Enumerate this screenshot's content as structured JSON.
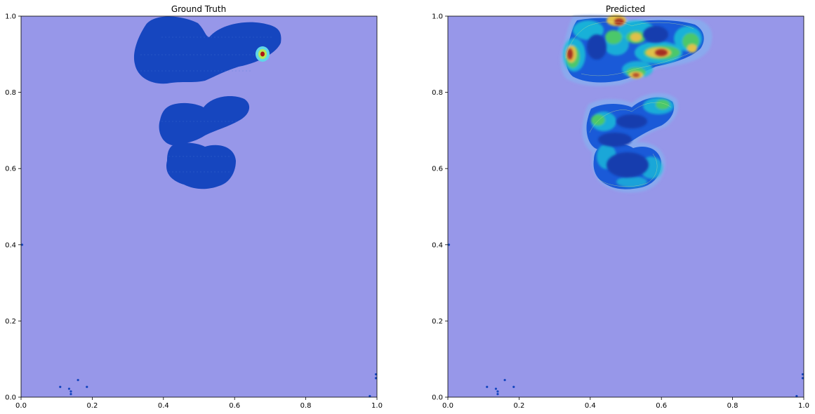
{
  "chart_data": [
    {
      "type": "heatmap",
      "title": "Ground Truth",
      "xlabel": "",
      "ylabel": "",
      "xlim": [
        0,
        1
      ],
      "ylim": [
        0,
        1
      ],
      "xticks": [
        "0.0",
        "0.2",
        "0.4",
        "0.6",
        "0.8",
        "1.0"
      ],
      "yticks": [
        "0.0",
        "0.2",
        "0.4",
        "0.6",
        "0.8",
        "1.0"
      ],
      "colormap": "jet",
      "overlay_alpha": "semi-transparent",
      "background_color": "#9797e9",
      "region_color": "#1646bf",
      "regions": [
        {
          "kind": "blob",
          "center": [
            0.47,
            0.89
          ],
          "extent": [
            0.38,
            0.15
          ],
          "level": "low"
        },
        {
          "kind": "blob",
          "center": [
            0.52,
            0.72
          ],
          "extent": [
            0.25,
            0.12
          ],
          "level": "low"
        },
        {
          "kind": "blob",
          "center": [
            0.5,
            0.61
          ],
          "extent": [
            0.2,
            0.11
          ],
          "level": "low"
        },
        {
          "kind": "hotspot",
          "center": [
            0.68,
            0.9
          ],
          "level": "high"
        }
      ],
      "scatter_points": [
        [
          0.0,
          0.4
        ],
        [
          0.11,
          0.027
        ],
        [
          0.135,
          0.022
        ],
        [
          0.14,
          0.015
        ],
        [
          0.14,
          0.008
        ],
        [
          0.16,
          0.045
        ],
        [
          0.185,
          0.027
        ],
        [
          0.98,
          0.0
        ],
        [
          1.0,
          0.05
        ],
        [
          1.0,
          0.06
        ]
      ]
    },
    {
      "type": "heatmap",
      "title": "Predicted",
      "xlabel": "",
      "ylabel": "",
      "xlim": [
        0,
        1
      ],
      "ylim": [
        0,
        1
      ],
      "xticks": [
        "0.0",
        "0.2",
        "0.4",
        "0.6",
        "0.8",
        "1.0"
      ],
      "yticks": [
        "0.0",
        "0.2",
        "0.4",
        "0.6",
        "0.8",
        "1.0"
      ],
      "colormap": "jet",
      "overlay_alpha": "semi-transparent",
      "background_color": "#9797e9",
      "region_color": "#1646bf",
      "regions": [
        {
          "kind": "blob",
          "center": [
            0.48,
            0.89
          ],
          "extent": [
            0.4,
            0.15
          ],
          "level": "mixed"
        },
        {
          "kind": "blob",
          "center": [
            0.52,
            0.72
          ],
          "extent": [
            0.26,
            0.12
          ],
          "level": "mixed"
        },
        {
          "kind": "blob",
          "center": [
            0.5,
            0.61
          ],
          "extent": [
            0.2,
            0.11
          ],
          "level": "mixed"
        },
        {
          "kind": "hotspot",
          "center": [
            0.34,
            0.89
          ],
          "level": "high"
        },
        {
          "kind": "hotspot",
          "center": [
            0.47,
            0.98
          ],
          "level": "high"
        },
        {
          "kind": "hotspot",
          "center": [
            0.52,
            0.84
          ],
          "level": "medium"
        },
        {
          "kind": "hotspot",
          "center": [
            0.6,
            0.9
          ],
          "level": "high"
        },
        {
          "kind": "hotspot",
          "center": [
            0.66,
            0.89
          ],
          "level": "medium"
        },
        {
          "kind": "hotspot",
          "center": [
            0.53,
            0.94
          ],
          "level": "medium"
        }
      ],
      "scatter_points": [
        [
          0.0,
          0.4
        ],
        [
          0.11,
          0.027
        ],
        [
          0.135,
          0.022
        ],
        [
          0.14,
          0.015
        ],
        [
          0.14,
          0.008
        ],
        [
          0.16,
          0.045
        ],
        [
          0.185,
          0.027
        ],
        [
          0.98,
          0.0
        ],
        [
          1.0,
          0.05
        ],
        [
          1.0,
          0.06
        ]
      ]
    }
  ]
}
